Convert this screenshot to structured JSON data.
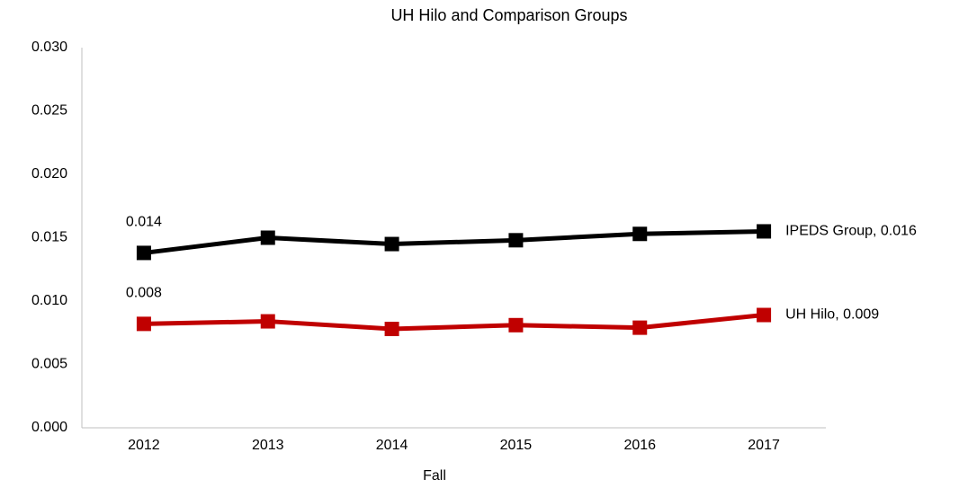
{
  "chart_data": {
    "type": "line",
    "title": "UH Hilo and Comparison Groups",
    "x_label": "Fall",
    "categories": [
      "2012",
      "2013",
      "2014",
      "2015",
      "2016",
      "2017"
    ],
    "series": [
      {
        "name": "IPEDS Group",
        "color": "#000000",
        "values": [
          0.0138,
          0.015,
          0.0145,
          0.0148,
          0.0153,
          0.0155
        ],
        "value_labels": [
          "0.014",
          null,
          null,
          null,
          null,
          "0.016"
        ]
      },
      {
        "name": "UH Hilo",
        "color": "#c00000",
        "values": [
          0.0082,
          0.0084,
          0.0078,
          0.0081,
          0.0079,
          0.0089
        ],
        "value_labels": [
          "0.008",
          null,
          null,
          null,
          null,
          "0.009"
        ]
      }
    ],
    "ylim": [
      0,
      0.03
    ],
    "yticks": [
      {
        "value": 0,
        "label": "0.000"
      },
      {
        "value": 0.005,
        "label": "0.005"
      },
      {
        "value": 0.01,
        "label": "0.010"
      },
      {
        "value": 0.015,
        "label": "0.015"
      },
      {
        "value": 0.02,
        "label": "0.020"
      },
      {
        "value": 0.025,
        "label": "0.025"
      },
      {
        "value": 0.03,
        "label": "0.030"
      }
    ],
    "grid": false
  }
}
